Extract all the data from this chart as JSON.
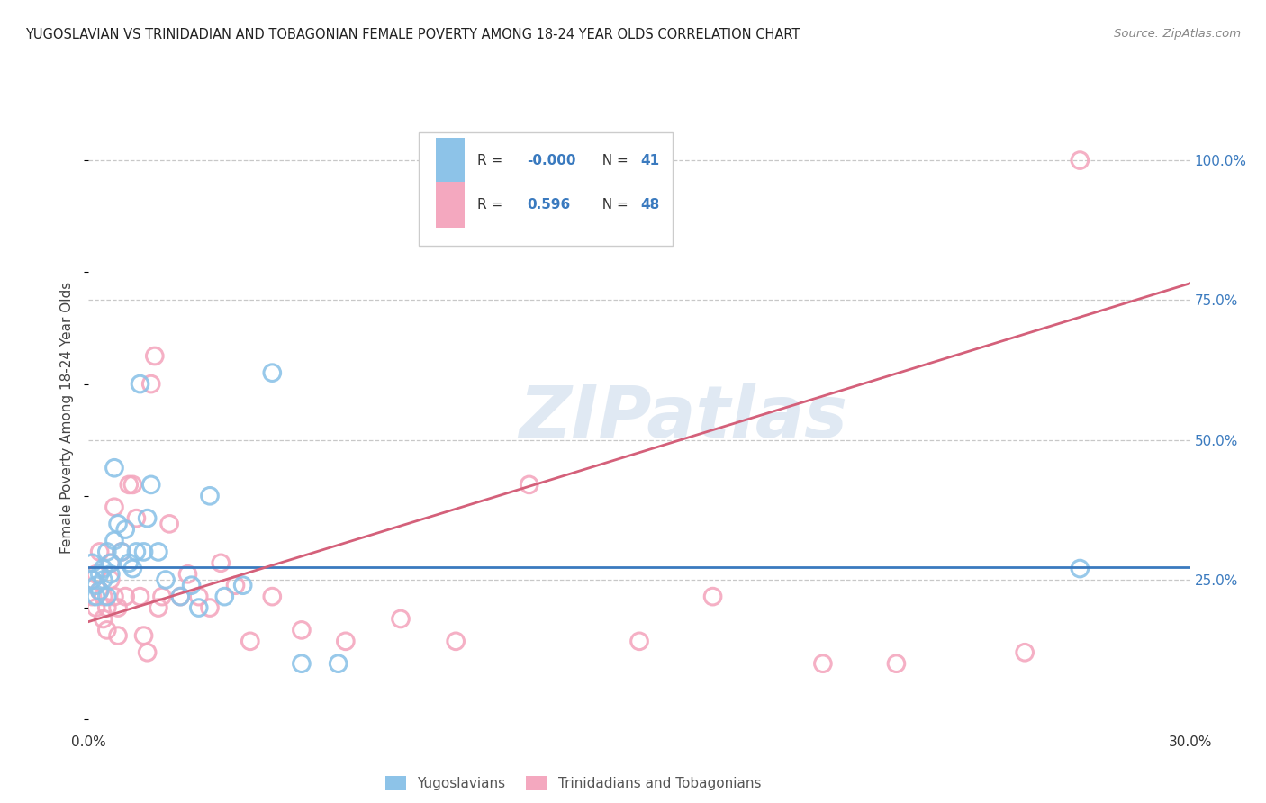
{
  "title": "YUGOSLAVIAN VS TRINIDADIAN AND TOBAGONIAN FEMALE POVERTY AMONG 18-24 YEAR OLDS CORRELATION CHART",
  "source": "Source: ZipAtlas.com",
  "ylabel": "Female Poverty Among 18-24 Year Olds",
  "xlim": [
    0.0,
    0.3
  ],
  "ylim": [
    -0.02,
    1.1
  ],
  "xticks": [
    0.0,
    0.05,
    0.1,
    0.15,
    0.2,
    0.25,
    0.3
  ],
  "xticklabels": [
    "0.0%",
    "",
    "",
    "",
    "",
    "",
    "30.0%"
  ],
  "yticks_right": [
    0.25,
    0.5,
    0.75,
    1.0
  ],
  "yticklabels_right": [
    "25.0%",
    "50.0%",
    "75.0%",
    "100.0%"
  ],
  "grid_color": "#c8c8c8",
  "background_color": "#ffffff",
  "blue_color": "#8dc3e8",
  "pink_color": "#f4a8bf",
  "blue_line_color": "#3a7abf",
  "pink_line_color": "#d4607a",
  "watermark": "ZIPatlas",
  "yug_line_y": 0.272,
  "tnt_line_x0": 0.0,
  "tnt_line_y0": 0.175,
  "tnt_line_x1": 0.3,
  "tnt_line_y1": 0.78,
  "yug_x": [
    0.001,
    0.001,
    0.002,
    0.002,
    0.003,
    0.003,
    0.004,
    0.004,
    0.005,
    0.005,
    0.006,
    0.006,
    0.007,
    0.007,
    0.008,
    0.009,
    0.01,
    0.011,
    0.012,
    0.013,
    0.014,
    0.015,
    0.016,
    0.017,
    0.019,
    0.021,
    0.025,
    0.028,
    0.03,
    0.033,
    0.037,
    0.042,
    0.05,
    0.058,
    0.068,
    0.27
  ],
  "yug_y": [
    0.25,
    0.28,
    0.24,
    0.22,
    0.26,
    0.23,
    0.27,
    0.25,
    0.3,
    0.22,
    0.26,
    0.28,
    0.45,
    0.32,
    0.35,
    0.3,
    0.34,
    0.28,
    0.27,
    0.3,
    0.6,
    0.3,
    0.36,
    0.42,
    0.3,
    0.25,
    0.22,
    0.24,
    0.2,
    0.4,
    0.22,
    0.24,
    0.62,
    0.1,
    0.1,
    0.27
  ],
  "tnt_x": [
    0.001,
    0.001,
    0.002,
    0.002,
    0.003,
    0.003,
    0.004,
    0.004,
    0.005,
    0.005,
    0.006,
    0.006,
    0.007,
    0.007,
    0.008,
    0.008,
    0.009,
    0.01,
    0.011,
    0.012,
    0.013,
    0.014,
    0.015,
    0.016,
    0.017,
    0.018,
    0.019,
    0.02,
    0.022,
    0.025,
    0.027,
    0.03,
    0.033,
    0.036,
    0.04,
    0.044,
    0.05,
    0.058,
    0.07,
    0.085,
    0.1,
    0.12,
    0.15,
    0.17,
    0.2,
    0.22,
    0.255,
    0.27
  ],
  "tnt_y": [
    0.22,
    0.25,
    0.2,
    0.26,
    0.23,
    0.3,
    0.22,
    0.18,
    0.2,
    0.16,
    0.25,
    0.28,
    0.38,
    0.22,
    0.2,
    0.15,
    0.3,
    0.22,
    0.42,
    0.42,
    0.36,
    0.22,
    0.15,
    0.12,
    0.6,
    0.65,
    0.2,
    0.22,
    0.35,
    0.22,
    0.26,
    0.22,
    0.2,
    0.28,
    0.24,
    0.14,
    0.22,
    0.16,
    0.14,
    0.18,
    0.14,
    0.42,
    0.14,
    0.22,
    0.1,
    0.1,
    0.12,
    1.0
  ]
}
